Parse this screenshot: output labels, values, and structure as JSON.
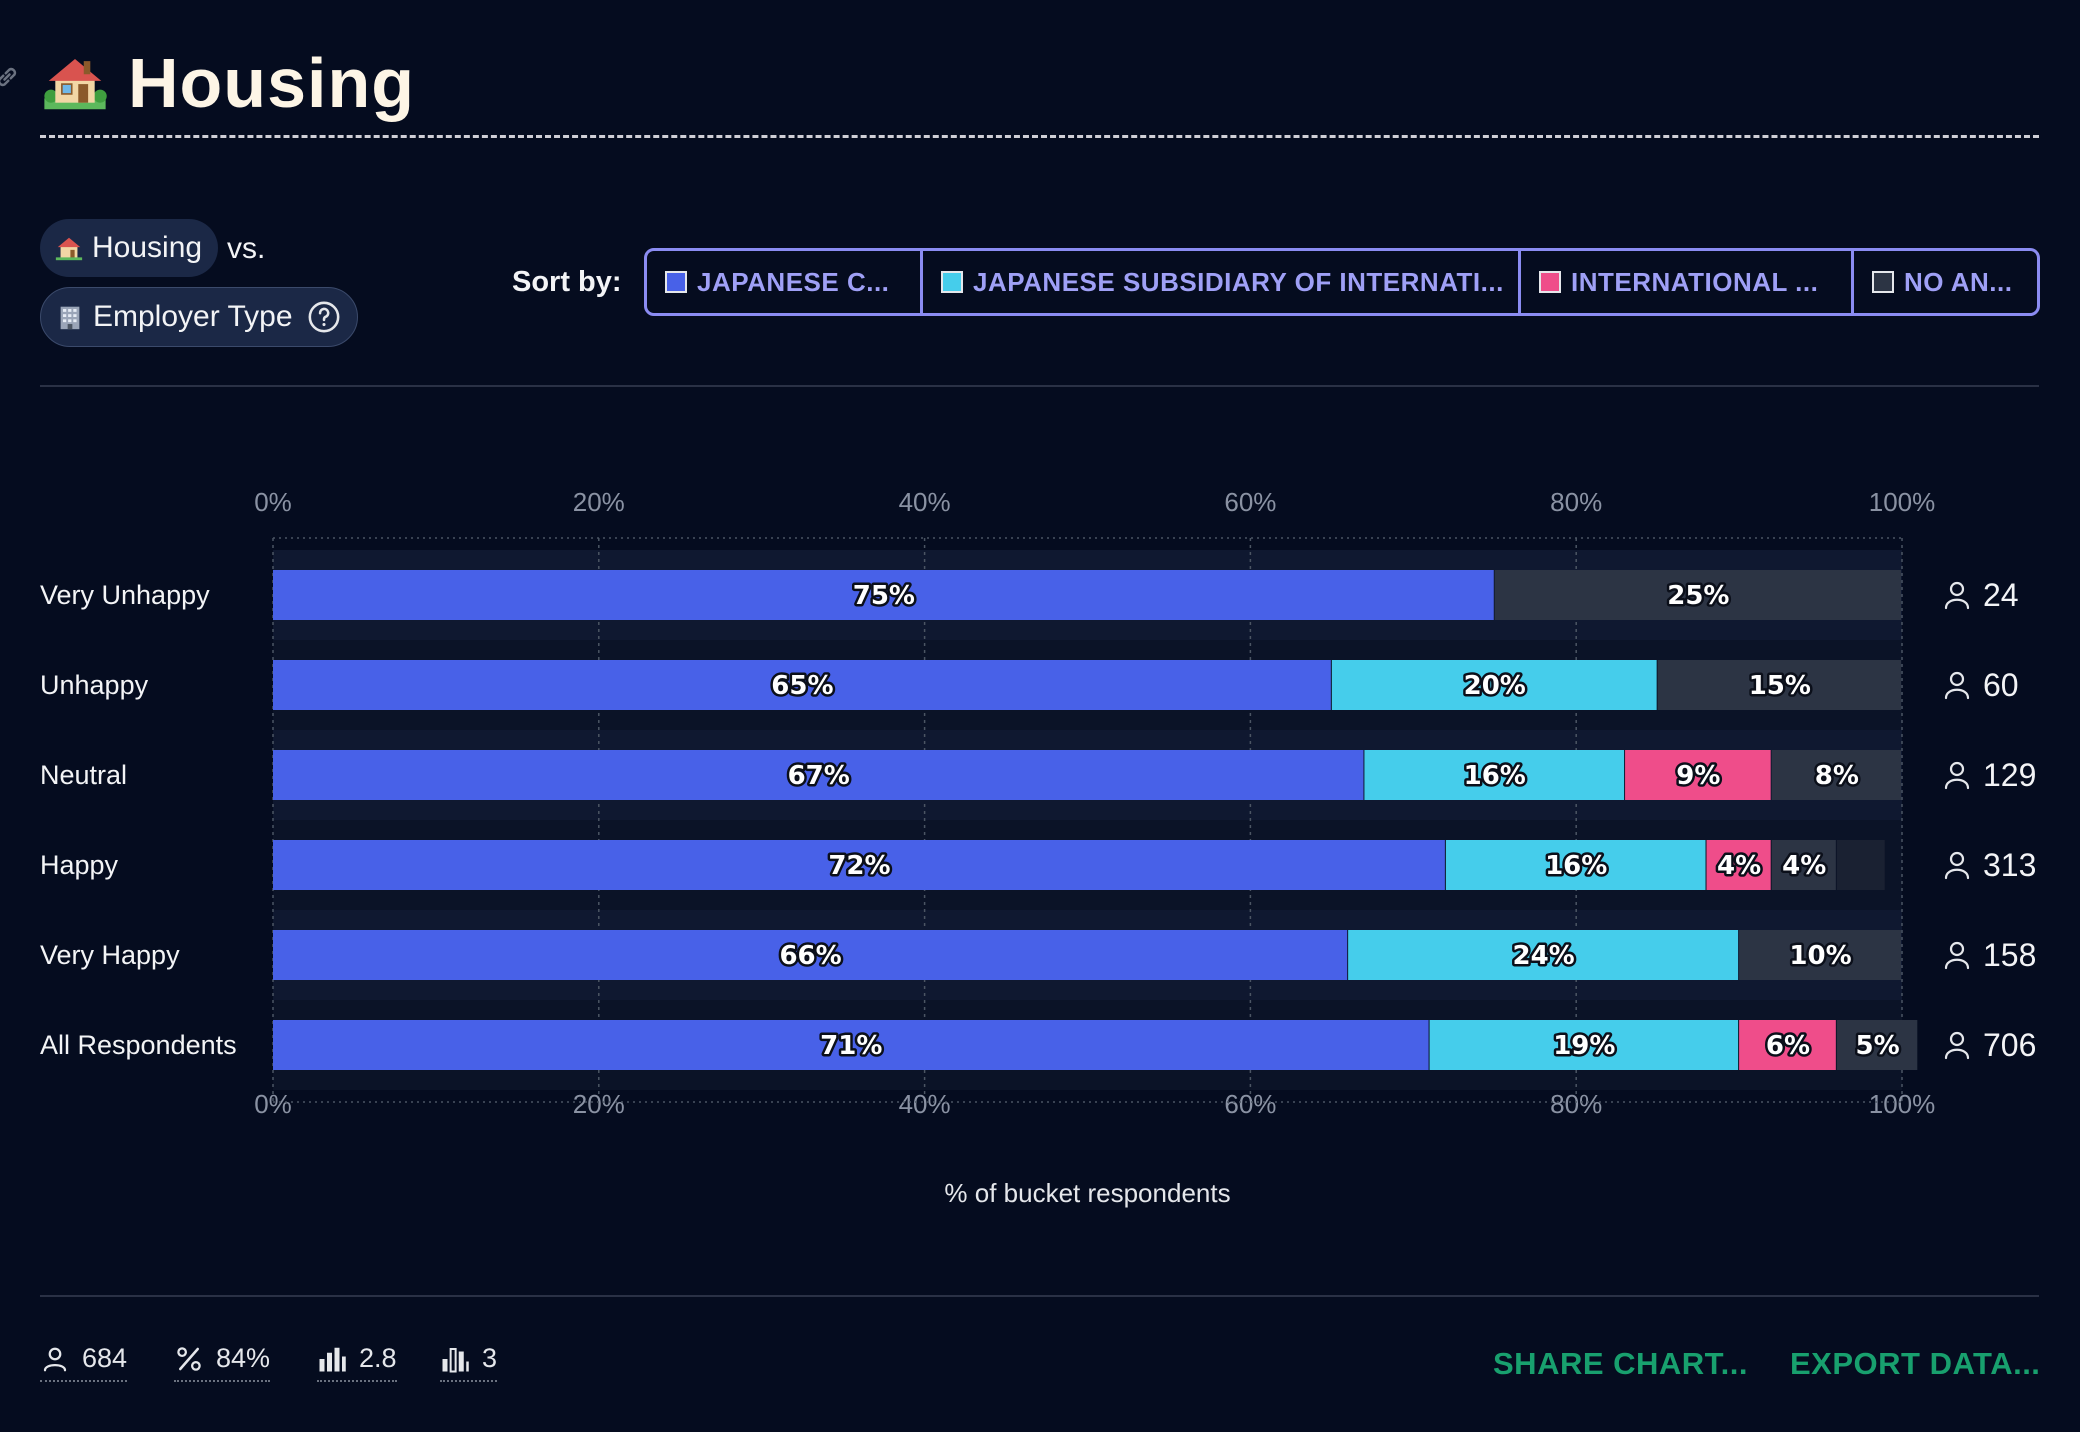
{
  "header": {
    "title": "Housing",
    "title_icon": "house-with-garden-icon",
    "link_icon": "link-icon"
  },
  "controls": {
    "primary_variable": "Housing",
    "vs_label": "vs.",
    "secondary_variable": "Employer Type",
    "sort_by_label": "Sort by:",
    "sort_options": [
      {
        "label": "JAPANESE C...",
        "color": "#4861e8"
      },
      {
        "label": "JAPANESE SUBSIDIARY OF INTERNATI...",
        "color": "#45cdeb"
      },
      {
        "label": "INTERNATIONAL ...",
        "color": "#ef4d8a"
      },
      {
        "label": "NO AN...",
        "color": "#2c3444"
      }
    ]
  },
  "chart_data": {
    "type": "bar",
    "orientation": "horizontal-stacked-100",
    "categories": [
      "Very Unhappy",
      "Unhappy",
      "Neutral",
      "Happy",
      "Very Happy",
      "All Respondents"
    ],
    "series": [
      {
        "name": "JAPANESE C...",
        "color": "#4861e8",
        "values": [
          75,
          65,
          67,
          72,
          66,
          71
        ]
      },
      {
        "name": "JAPANESE SUBSIDIARY OF INTERNATI...",
        "color": "#45cdeb",
        "values": [
          0,
          20,
          16,
          16,
          24,
          19
        ]
      },
      {
        "name": "INTERNATIONAL ...",
        "color": "#ef4d8a",
        "values": [
          0,
          0,
          9,
          4,
          0,
          6
        ]
      },
      {
        "name": "NO AN...",
        "color": "#2c3444",
        "values": [
          25,
          15,
          8,
          4,
          10,
          5
        ]
      },
      {
        "name": "",
        "color": "#1a2132",
        "values": [
          0,
          0,
          0,
          3,
          0,
          0
        ]
      }
    ],
    "respondent_counts": [
      24,
      60,
      129,
      313,
      158,
      706
    ],
    "x_ticks": [
      "0%",
      "20%",
      "40%",
      "60%",
      "80%",
      "100%"
    ],
    "xlim": [
      0,
      100
    ],
    "xlabel": "% of bucket respondents",
    "grid": true
  },
  "footer": {
    "stats": [
      {
        "icon": "person-icon",
        "value": "684"
      },
      {
        "icon": "percent-icon",
        "value": "84%"
      },
      {
        "icon": "bar-chart-icon",
        "value": "2.8"
      },
      {
        "icon": "bar-chart-outline-icon",
        "value": "3"
      }
    ],
    "share_label": "SHARE CHART...",
    "export_label": "EXPORT DATA..."
  }
}
